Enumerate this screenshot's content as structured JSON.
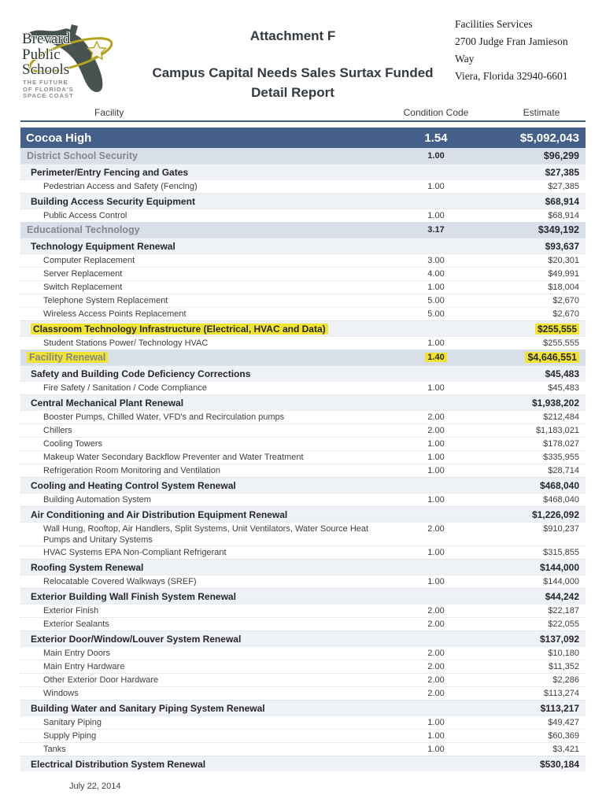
{
  "header": {
    "attachment": "Attachment F",
    "title_line1": "Campus Capital Needs Sales Surtax Funded",
    "title_line2": "Detail Report",
    "org": {
      "line1": "Facilities Services",
      "line2": "2700 Judge Fran Jamieson Way",
      "line3": "Viera, Florida 32940-6601"
    },
    "logo": {
      "name_line1": "Brevard",
      "name_line2": "Public",
      "name_line3": "Schools",
      "tag_line1": "THE FUTURE",
      "tag_line2": "OF FLORIDA'S",
      "tag_line3": "SPACE COAST"
    }
  },
  "colors": {
    "facility_bar": "#44608A",
    "category_bg": "#D9DFE9",
    "subcategory_bg": "#EEF1F6",
    "highlight_yellow": "#F0E431",
    "category_text": "#85878A",
    "body_text": "#3D3D3D"
  },
  "table": {
    "columns": [
      "Facility",
      "Condition Code",
      "Estimate"
    ],
    "rows": [
      {
        "type": "facility",
        "label": "Cocoa High",
        "code": "1.54",
        "estimate": "$5,092,043"
      },
      {
        "type": "category",
        "label": "District School Security",
        "code": "1.00",
        "estimate": "$96,299"
      },
      {
        "type": "subcategory",
        "label": "Perimeter/Entry Fencing and Gates",
        "code": "",
        "estimate": "$27,385"
      },
      {
        "type": "detail",
        "label": "Pedestrian Access and Safety (Fencing)",
        "code": "1.00",
        "estimate": "$27,385"
      },
      {
        "type": "subcategory",
        "label": "Building Access Security Equipment",
        "code": "",
        "estimate": "$68,914"
      },
      {
        "type": "detail",
        "label": "Public Access Control",
        "code": "1.00",
        "estimate": "$68,914"
      },
      {
        "type": "category",
        "label": "Educational Technology",
        "code": "3.17",
        "estimate": "$349,192"
      },
      {
        "type": "subcategory",
        "label": "Technology Equipment Renewal",
        "code": "",
        "estimate": "$93,637"
      },
      {
        "type": "detail",
        "label": "Computer Replacement",
        "code": "3.00",
        "estimate": "$20,301"
      },
      {
        "type": "detail",
        "label": "Server Replacement",
        "code": "4.00",
        "estimate": "$49,991"
      },
      {
        "type": "detail",
        "label": "Switch Replacement",
        "code": "1.00",
        "estimate": "$18,004"
      },
      {
        "type": "detail",
        "label": "Telephone System Replacement",
        "code": "5.00",
        "estimate": "$2,670"
      },
      {
        "type": "detail",
        "label": "Wireless Access Points Replacement",
        "code": "5.00",
        "estimate": "$2,670"
      },
      {
        "type": "subcategory",
        "label": "Classroom Technology Infrastructure (Electrical, HVAC and Data)",
        "code": "",
        "estimate": "$255,555",
        "highlight": true
      },
      {
        "type": "detail",
        "label": "Student Stations Power/ Technology HVAC",
        "code": "1.00",
        "estimate": "$255,555"
      },
      {
        "type": "category",
        "label": "Facility Renewal",
        "code": "1.40",
        "estimate": "$4,646,551",
        "highlight": true
      },
      {
        "type": "subcategory",
        "label": "Safety and Building Code Deficiency Corrections",
        "code": "",
        "estimate": "$45,483"
      },
      {
        "type": "detail",
        "label": "Fire Safety / Sanitation / Code Compliance",
        "code": "1.00",
        "estimate": "$45,483"
      },
      {
        "type": "subcategory",
        "label": "Central Mechanical Plant Renewal",
        "code": "",
        "estimate": "$1,938,202"
      },
      {
        "type": "detail",
        "label": "Booster Pumps, Chilled Water, VFD's and Recirculation pumps",
        "code": "2.00",
        "estimate": "$212,484"
      },
      {
        "type": "detail",
        "label": "Chillers",
        "code": "2.00",
        "estimate": "$1,183,021"
      },
      {
        "type": "detail",
        "label": "Cooling Towers",
        "code": "1.00",
        "estimate": "$178,027"
      },
      {
        "type": "detail",
        "label": "Makeup Water Secondary Backflow Preventer and Water Treatment",
        "code": "1.00",
        "estimate": "$335,955"
      },
      {
        "type": "detail",
        "label": "Refrigeration Room Monitoring and Ventilation",
        "code": "1.00",
        "estimate": "$28,714"
      },
      {
        "type": "subcategory",
        "label": "Cooling and Heating Control System Renewal",
        "code": "",
        "estimate": "$468,040"
      },
      {
        "type": "detail",
        "label": "Building Automation System",
        "code": "1.00",
        "estimate": "$468,040"
      },
      {
        "type": "subcategory",
        "label": "Air Conditioning and Air Distribution Equipment Renewal",
        "code": "",
        "estimate": "$1,226,092"
      },
      {
        "type": "detail",
        "label": "Wall Hung, Rooftop, Air Handlers, Split Systems, Unit Ventilators, Water Source Heat Pumps and Unitary Systems",
        "code": "2.00",
        "estimate": "$910,237"
      },
      {
        "type": "detail",
        "label": "HVAC Systems EPA Non-Compliant Refrigerant",
        "code": "1.00",
        "estimate": "$315,855"
      },
      {
        "type": "subcategory",
        "label": "Roofing System Renewal",
        "code": "",
        "estimate": "$144,000"
      },
      {
        "type": "detail",
        "label": "Relocatable Covered Walkways (SREF)",
        "code": "1.00",
        "estimate": "$144,000"
      },
      {
        "type": "subcategory",
        "label": "Exterior Building Wall Finish System Renewal",
        "code": "",
        "estimate": "$44,242"
      },
      {
        "type": "detail",
        "label": "Exterior Finish",
        "code": "2.00",
        "estimate": "$22,187"
      },
      {
        "type": "detail",
        "label": "Exterior Sealants",
        "code": "2.00",
        "estimate": "$22,055"
      },
      {
        "type": "subcategory",
        "label": "Exterior Door/Window/Louver System Renewal",
        "code": "",
        "estimate": "$137,092"
      },
      {
        "type": "detail",
        "label": "Main Entry Doors",
        "code": "2.00",
        "estimate": "$10,180"
      },
      {
        "type": "detail",
        "label": "Main Entry Hardware",
        "code": "2.00",
        "estimate": "$11,352"
      },
      {
        "type": "detail",
        "label": "Other Exterior Door Hardware",
        "code": "2.00",
        "estimate": "$2,286"
      },
      {
        "type": "detail",
        "label": "Windows",
        "code": "2.00",
        "estimate": "$113,274"
      },
      {
        "type": "subcategory",
        "label": "Building Water and Sanitary Piping System Renewal",
        "code": "",
        "estimate": "$113,217"
      },
      {
        "type": "detail",
        "label": "Sanitary Piping",
        "code": "1.00",
        "estimate": "$49,427"
      },
      {
        "type": "detail",
        "label": "Supply Piping",
        "code": "1.00",
        "estimate": "$60,369"
      },
      {
        "type": "detail",
        "label": "Tanks",
        "code": "1.00",
        "estimate": "$3,421"
      },
      {
        "type": "subcategory",
        "label": "Electrical Distribution System Renewal",
        "code": "",
        "estimate": "$530,184"
      }
    ]
  },
  "footer": {
    "date": "July 22, 2014"
  }
}
